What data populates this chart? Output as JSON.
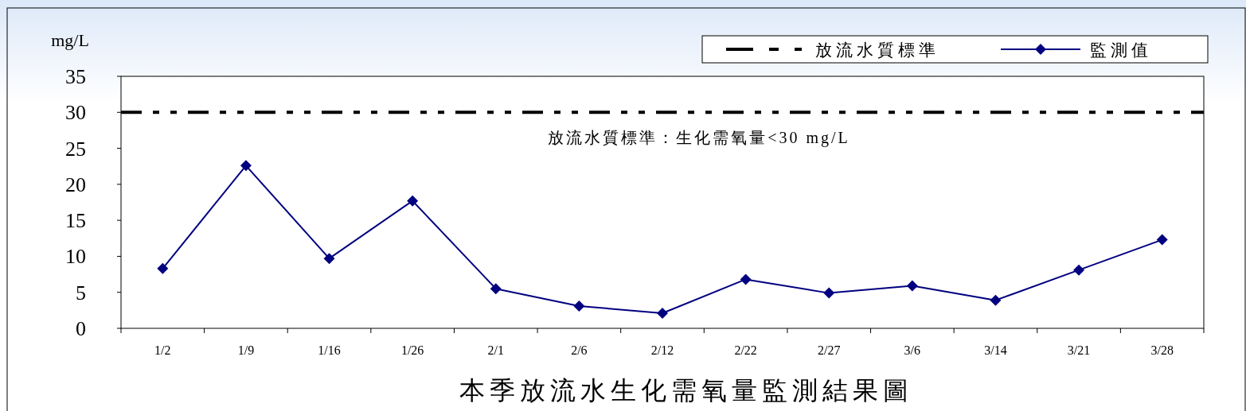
{
  "chart_data": {
    "type": "line",
    "title": "本季放流水生化需氧量監測結果圖",
    "ylabel": "mg/L",
    "categories": [
      "1/2",
      "1/9",
      "1/16",
      "1/26",
      "2/1",
      "2/6",
      "2/12",
      "2/22",
      "2/27",
      "3/6",
      "3/14",
      "3/21",
      "3/28"
    ],
    "series": [
      {
        "name": "監測值",
        "color": "#000080",
        "values": [
          8.3,
          22.6,
          9.7,
          17.7,
          5.5,
          3.1,
          2.1,
          6.8,
          4.9,
          5.9,
          3.9,
          8.1,
          12.3
        ]
      }
    ],
    "ylim": [
      0,
      35
    ],
    "yticks": [
      0,
      5,
      10,
      15,
      20,
      25,
      30,
      35
    ],
    "ref_lines": [
      {
        "axis": "y",
        "value": 30,
        "label": "放流水質標準",
        "color": "#000000",
        "line_style": "dashed"
      }
    ],
    "annotations": [
      "放流水質標準：生化需氧量<30 mg/L"
    ],
    "legend": "top right",
    "marker": "diamond",
    "line_style": "solid",
    "grid": false
  }
}
